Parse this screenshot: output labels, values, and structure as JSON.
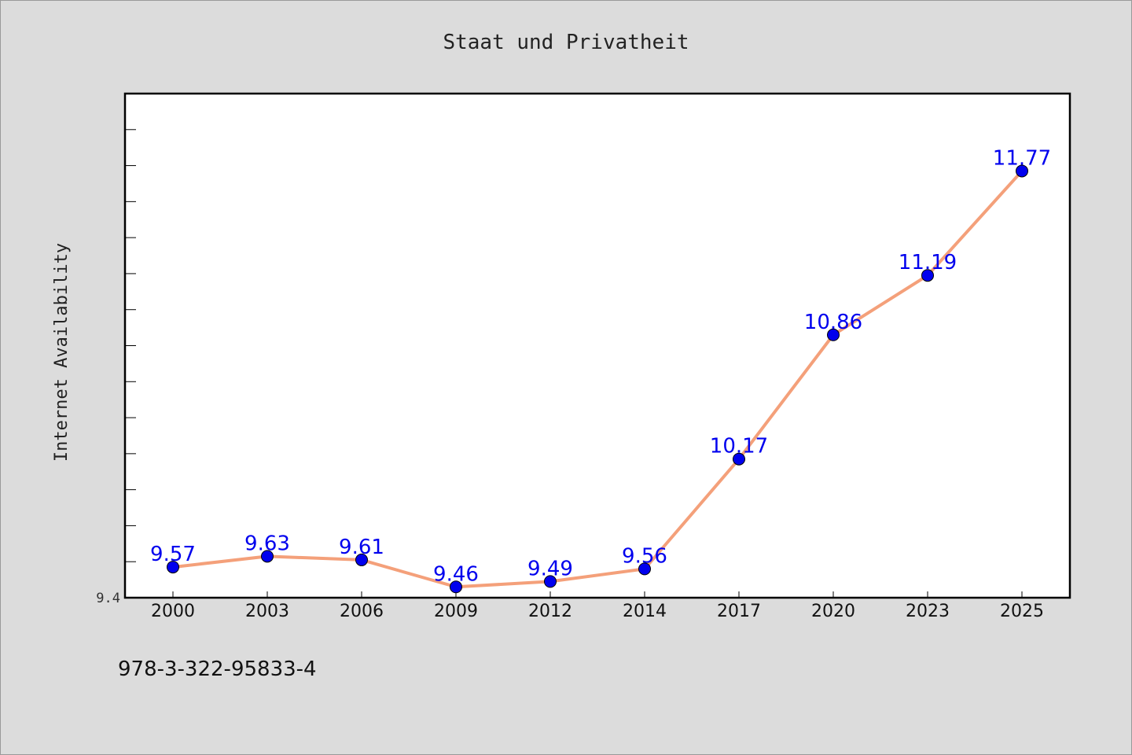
{
  "chart_data": {
    "type": "line",
    "title": "Staat und Privatheit",
    "xlabel": "",
    "ylabel": "Internet Availability",
    "categories": [
      "2000",
      "2003",
      "2006",
      "2009",
      "2012",
      "2014",
      "2017",
      "2020",
      "2023",
      "2025"
    ],
    "series": [
      {
        "values": [
          9.57,
          9.63,
          9.61,
          9.46,
          9.49,
          9.56,
          10.17,
          10.86,
          11.19,
          11.77
        ],
        "line_color": "#f4a07a",
        "marker_color": "#0000ee"
      }
    ],
    "ylim": [
      9.4,
      12.2
    ],
    "ytick_labels": [
      "9.4"
    ],
    "grid": false,
    "legend": "none"
  },
  "footer": {
    "isbn": "978-3-322-95833-4"
  }
}
